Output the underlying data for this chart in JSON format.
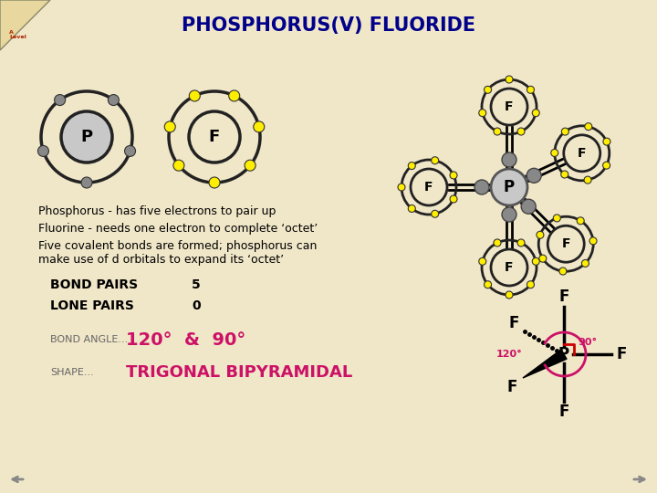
{
  "title": "PHOSPHORUS(V) FLUORIDE",
  "title_color": "#00008B",
  "bg_color": "#F0E6C8",
  "text1": "Phosphorus - has five electrons to pair up",
  "text2": "Fluorine - needs one electron to complete ‘octet’",
  "text3a": "Five covalent bonds are formed; phosphorus can",
  "text3b": "make use of d orbitals to expand its ‘octet’",
  "bond_pairs_label": "BOND PAIRS",
  "bond_pairs_value": "5",
  "lone_pairs_label": "LONE PAIRS",
  "lone_pairs_value": "0",
  "bond_angle_label": "BOND ANGLE...",
  "bond_angle_value": "120°  &  90°",
  "shape_label": "SHAPE...",
  "shape_value": "TRIGONAL BIPYRAMIDAL",
  "yellow": "#FFEE00",
  "gray_e": "#888888",
  "dark": "#222222",
  "p_face": "#C8C8C8",
  "f_face": "#F0E6C8",
  "magenta": "#CC1166",
  "red_angle": "#CC0000",
  "nav_gray": "#888888"
}
